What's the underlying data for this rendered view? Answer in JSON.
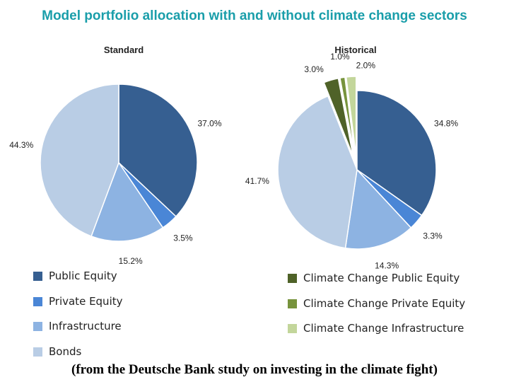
{
  "colors": {
    "public_equity": "#365f91",
    "private_equity": "#4a86d6",
    "infrastructure": "#8db3e2",
    "bonds": "#b9cde5",
    "cc_public_equity": "#4f6228",
    "cc_private_equity": "#77933c",
    "cc_infrastructure": "#c3d69b"
  },
  "caption": "(from the Deutsche Bank study on investing in the climate fight)",
  "chart_data": {
    "type": "pie",
    "title": "Model portfolio allocation with and without climate change sectors",
    "charts": [
      {
        "subtitle": "Standard",
        "slices": [
          {
            "name": "Public Equity",
            "value": 37.0,
            "label": "37.0%",
            "color": "#365f91",
            "exploded": false
          },
          {
            "name": "Private Equity",
            "value": 3.5,
            "label": "3.5%",
            "color": "#4a86d6",
            "exploded": false
          },
          {
            "name": "Infrastructure",
            "value": 15.2,
            "label": "15.2%",
            "color": "#8db3e2",
            "exploded": false
          },
          {
            "name": "Bonds",
            "value": 44.3,
            "label": "44.3%",
            "color": "#b9cde5",
            "exploded": false
          }
        ]
      },
      {
        "subtitle": "Historical",
        "slices": [
          {
            "name": "Public Equity",
            "value": 34.8,
            "label": "34.8%",
            "color": "#365f91",
            "exploded": false
          },
          {
            "name": "Private Equity",
            "value": 3.3,
            "label": "3.3%",
            "color": "#4a86d6",
            "exploded": false
          },
          {
            "name": "Infrastructure",
            "value": 14.3,
            "label": "14.3%",
            "color": "#8db3e2",
            "exploded": false
          },
          {
            "name": "Bonds",
            "value": 41.7,
            "label": "41.7%",
            "color": "#b9cde5",
            "exploded": false
          },
          {
            "name": "Climate Change Public Equity",
            "value": 3.0,
            "label": "3.0%",
            "color": "#4f6228",
            "exploded": true
          },
          {
            "name": "Climate Change Private Equity",
            "value": 1.0,
            "label": "1.0%",
            "color": "#77933c",
            "exploded": true
          },
          {
            "name": "Climate Change Infrastructure",
            "value": 2.0,
            "label": "2.0%",
            "color": "#c3d69b",
            "exploded": true
          }
        ]
      }
    ],
    "legend_left": [
      "Public Equity",
      "Private Equity",
      "Infrastructure",
      "Bonds"
    ],
    "legend_right": [
      "Climate Change Public Equity",
      "Climate Change Private Equity",
      "Climate Change Infrastructure"
    ]
  }
}
